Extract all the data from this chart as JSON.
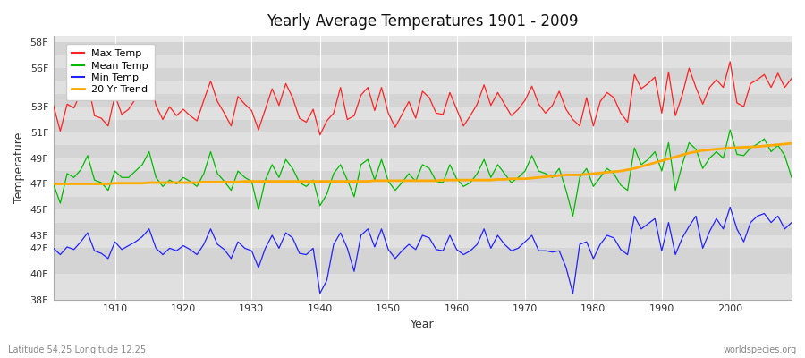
{
  "title": "Yearly Average Temperatures 1901 - 2009",
  "xlabel": "Year",
  "ylabel": "Temperature",
  "footnote_left": "Latitude 54.25 Longitude 12.25",
  "footnote_right": "worldspecies.org",
  "start_year": 1901,
  "end_year": 2009,
  "ylim": [
    38,
    58.5
  ],
  "xlim": [
    1901,
    2009
  ],
  "ytick_positions": [
    38,
    40,
    42,
    43,
    44,
    45,
    46,
    47,
    48,
    49,
    50,
    51,
    52,
    53,
    54,
    55,
    56,
    57,
    58
  ],
  "ytick_show": {
    "38": "38F",
    "40": "40F",
    "42": "42F",
    "43": "43F",
    "45": "45F",
    "47": "47F",
    "49": "49F",
    "51": "51F",
    "53": "53F",
    "56": "56F",
    "58": "58F"
  },
  "xticks": [
    1910,
    1920,
    1930,
    1940,
    1950,
    1960,
    1970,
    1980,
    1990,
    2000
  ],
  "bg_color": "#ffffff",
  "plot_bg_color": "#e8e8e8",
  "stripe_colors": [
    "#e0e0e0",
    "#d4d4d4"
  ],
  "grid_color": "#ffffff",
  "max_color": "#ff2222",
  "mean_color": "#00bb00",
  "min_color": "#2222ff",
  "trend_color": "#ffaa00",
  "legend_labels": [
    "Max Temp",
    "Mean Temp",
    "Min Temp",
    "20 Yr Trend"
  ],
  "max_temps": [
    53.1,
    51.1,
    53.2,
    52.9,
    54.1,
    55.0,
    52.3,
    52.1,
    51.5,
    53.9,
    52.4,
    52.8,
    53.6,
    54.2,
    55.3,
    53.1,
    52.0,
    53.0,
    52.3,
    52.8,
    52.3,
    51.9,
    53.5,
    55.0,
    53.4,
    52.5,
    51.5,
    53.8,
    53.2,
    52.7,
    51.2,
    52.8,
    54.4,
    53.1,
    54.8,
    53.7,
    52.1,
    51.8,
    52.8,
    50.8,
    51.9,
    52.5,
    54.5,
    52.0,
    52.3,
    53.9,
    54.5,
    52.7,
    54.5,
    52.5,
    51.4,
    52.4,
    53.4,
    52.1,
    54.2,
    53.7,
    52.5,
    52.4,
    54.1,
    52.8,
    51.5,
    52.3,
    53.2,
    54.7,
    53.1,
    54.1,
    53.2,
    52.3,
    52.8,
    53.5,
    54.6,
    53.2,
    52.5,
    53.1,
    54.2,
    52.8,
    52.0,
    51.5,
    53.7,
    51.5,
    53.4,
    54.1,
    53.7,
    52.5,
    51.8,
    55.5,
    54.4,
    54.8,
    55.3,
    52.5,
    55.7,
    52.3,
    53.9,
    56.0,
    54.5,
    53.2,
    54.5,
    55.1,
    54.5,
    56.5,
    53.3,
    53.0,
    54.8,
    55.1,
    55.5,
    54.5,
    55.6,
    54.5,
    55.2
  ],
  "mean_temps": [
    47.0,
    45.5,
    47.8,
    47.5,
    48.1,
    49.2,
    47.3,
    47.1,
    46.5,
    48.0,
    47.5,
    47.5,
    48.0,
    48.5,
    49.5,
    47.5,
    46.8,
    47.3,
    47.0,
    47.5,
    47.2,
    46.8,
    47.8,
    49.5,
    47.8,
    47.2,
    46.5,
    48.0,
    47.5,
    47.2,
    45.0,
    47.3,
    48.5,
    47.5,
    48.9,
    48.2,
    47.1,
    46.8,
    47.3,
    45.3,
    46.2,
    47.8,
    48.5,
    47.3,
    46.0,
    48.5,
    48.9,
    47.3,
    48.9,
    47.2,
    46.5,
    47.1,
    47.8,
    47.2,
    48.5,
    48.2,
    47.2,
    47.1,
    48.5,
    47.4,
    46.8,
    47.1,
    47.8,
    48.9,
    47.5,
    48.5,
    47.8,
    47.1,
    47.5,
    48.0,
    49.2,
    48.0,
    47.8,
    47.5,
    48.2,
    46.5,
    44.5,
    47.5,
    48.2,
    46.8,
    47.5,
    48.2,
    47.8,
    46.9,
    46.5,
    49.8,
    48.5,
    48.9,
    49.5,
    48.0,
    50.2,
    46.5,
    48.5,
    50.2,
    49.7,
    48.2,
    49.0,
    49.5,
    49.0,
    51.2,
    49.3,
    49.2,
    49.8,
    50.1,
    50.5,
    49.5,
    50.0,
    49.2,
    47.5
  ],
  "min_temps": [
    42.0,
    41.5,
    42.1,
    41.9,
    42.5,
    43.2,
    41.8,
    41.6,
    41.2,
    42.5,
    41.9,
    42.2,
    42.5,
    42.9,
    43.5,
    42.0,
    41.5,
    42.0,
    41.8,
    42.2,
    41.9,
    41.5,
    42.3,
    43.5,
    42.3,
    41.9,
    41.2,
    42.5,
    42.0,
    41.8,
    40.5,
    42.0,
    43.0,
    42.0,
    43.2,
    42.8,
    41.6,
    41.5,
    42.0,
    38.5,
    39.5,
    42.3,
    43.2,
    42.0,
    40.2,
    43.0,
    43.5,
    42.1,
    43.5,
    41.9,
    41.2,
    41.8,
    42.3,
    41.9,
    43.0,
    42.8,
    41.9,
    41.8,
    43.0,
    41.9,
    41.5,
    41.8,
    42.3,
    43.5,
    42.0,
    43.0,
    42.3,
    41.8,
    42.0,
    42.5,
    43.0,
    41.8,
    41.8,
    41.7,
    41.8,
    40.5,
    38.5,
    42.3,
    42.5,
    41.2,
    42.3,
    43.0,
    42.8,
    41.9,
    41.5,
    44.5,
    43.5,
    43.9,
    44.3,
    41.8,
    44.0,
    41.5,
    42.8,
    43.7,
    44.5,
    42.0,
    43.3,
    44.3,
    43.5,
    45.2,
    43.5,
    42.5,
    44.0,
    44.5,
    44.7,
    44.0,
    44.5,
    43.5,
    44.0
  ],
  "trend_temps": [
    47.0,
    47.0,
    47.0,
    47.0,
    47.0,
    47.0,
    47.0,
    47.0,
    47.0,
    47.05,
    47.05,
    47.05,
    47.05,
    47.05,
    47.1,
    47.1,
    47.1,
    47.1,
    47.1,
    47.1,
    47.1,
    47.1,
    47.15,
    47.15,
    47.15,
    47.15,
    47.15,
    47.15,
    47.2,
    47.2,
    47.2,
    47.2,
    47.2,
    47.2,
    47.2,
    47.2,
    47.2,
    47.2,
    47.2,
    47.2,
    47.2,
    47.2,
    47.2,
    47.2,
    47.2,
    47.2,
    47.2,
    47.25,
    47.25,
    47.25,
    47.25,
    47.25,
    47.25,
    47.25,
    47.25,
    47.25,
    47.25,
    47.3,
    47.3,
    47.3,
    47.3,
    47.3,
    47.3,
    47.3,
    47.3,
    47.35,
    47.35,
    47.4,
    47.4,
    47.4,
    47.45,
    47.5,
    47.55,
    47.6,
    47.65,
    47.7,
    47.7,
    47.7,
    47.75,
    47.8,
    47.85,
    47.9,
    47.95,
    48.0,
    48.1,
    48.2,
    48.35,
    48.5,
    48.65,
    48.8,
    48.95,
    49.1,
    49.25,
    49.4,
    49.5,
    49.6,
    49.65,
    49.7,
    49.75,
    49.8,
    49.82,
    49.85,
    49.87,
    49.9,
    49.95,
    50.0,
    50.05,
    50.1,
    50.15
  ]
}
